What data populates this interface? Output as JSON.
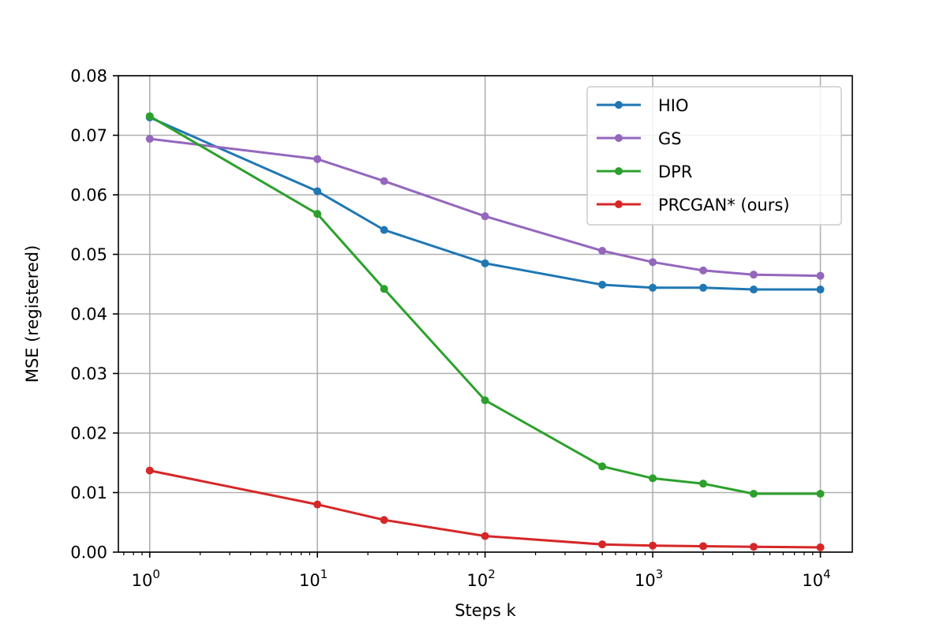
{
  "chart_data": {
    "type": "line",
    "title": "",
    "xlabel": "Steps k",
    "ylabel": "MSE (registered)",
    "xscale": "log",
    "xlim": [
      0.65,
      15500
    ],
    "ylim": [
      0,
      0.08
    ],
    "grid": true,
    "legend_position": "top-right",
    "x_tick_labels": [
      {
        "base": "10",
        "exp": "0",
        "value": 1
      },
      {
        "base": "10",
        "exp": "1",
        "value": 10
      },
      {
        "base": "10",
        "exp": "2",
        "value": 100
      },
      {
        "base": "10",
        "exp": "3",
        "value": 1000
      },
      {
        "base": "10",
        "exp": "4",
        "value": 10000
      }
    ],
    "y_tick_labels": [
      "0.00",
      "0.01",
      "0.02",
      "0.03",
      "0.04",
      "0.05",
      "0.06",
      "0.07",
      "0.08"
    ],
    "x": [
      1,
      10,
      25,
      100,
      500,
      1000,
      2000,
      4000,
      10000
    ],
    "series": [
      {
        "name": "HIO",
        "color": "#1f77b4",
        "values": [
          0.073,
          0.0606,
          0.0541,
          0.0485,
          0.0449,
          0.0444,
          0.0444,
          0.0441,
          0.0441
        ]
      },
      {
        "name": "GS",
        "color": "#9467bd",
        "values": [
          0.0694,
          0.066,
          0.0623,
          0.0564,
          0.0506,
          0.0487,
          0.0473,
          0.0466,
          0.0464
        ]
      },
      {
        "name": "DPR",
        "color": "#2ca02c",
        "values": [
          0.0732,
          0.0568,
          0.0442,
          0.0255,
          0.0144,
          0.0124,
          0.0115,
          0.0098,
          0.0098
        ]
      },
      {
        "name": "PRCGAN* (ours)",
        "color": "#d62728",
        "values": [
          0.0137,
          0.008,
          0.0054,
          0.0027,
          0.0013,
          0.0011,
          0.001,
          0.0009,
          0.0008
        ]
      }
    ]
  }
}
